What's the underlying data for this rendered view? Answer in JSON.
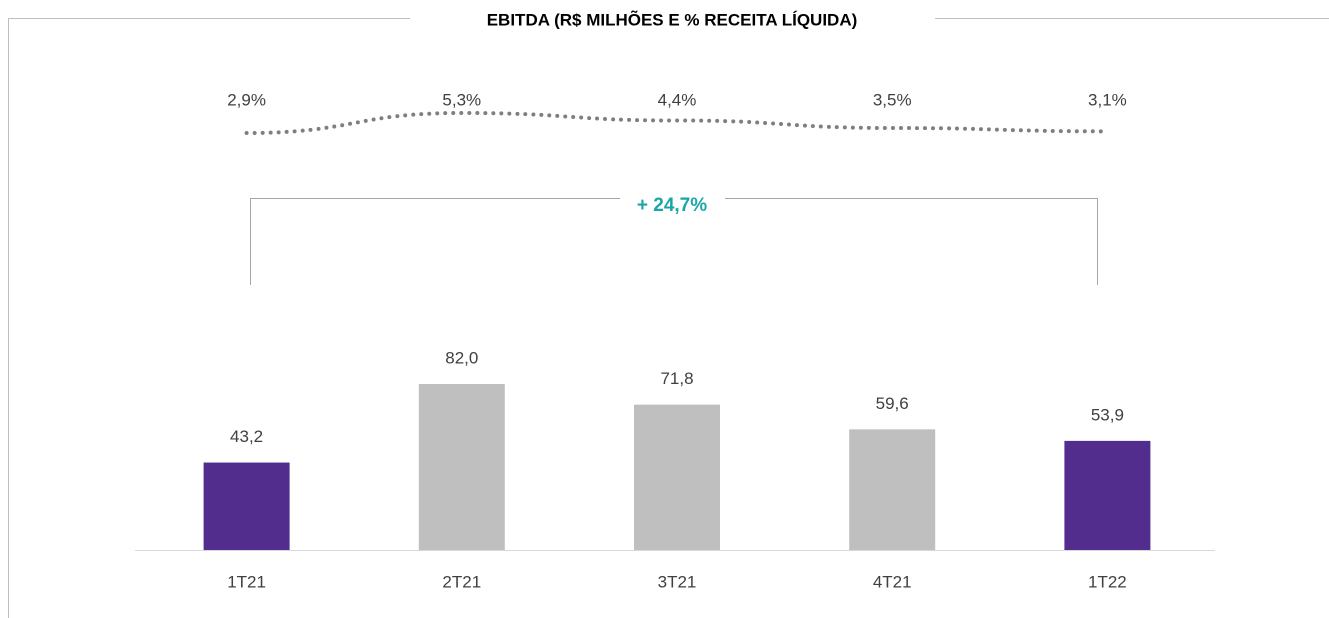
{
  "chart_data": {
    "type": "bar",
    "title": "EBITDA (R$ MILHÕES E % RECEITA LÍQUIDA)",
    "categories": [
      "1T21",
      "2T21",
      "3T21",
      "4T21",
      "1T22"
    ],
    "values": [
      43.2,
      82.0,
      71.8,
      59.6,
      53.9
    ],
    "value_labels": [
      "43,2",
      "82,0",
      "71,8",
      "59,6",
      "53,9"
    ],
    "colors": [
      "#522d8e",
      "#bfbfbf",
      "#bfbfbf",
      "#bfbfbf",
      "#522d8e"
    ],
    "margin": {
      "type": "line",
      "values": [
        2.9,
        5.3,
        4.4,
        3.5,
        3.1
      ],
      "value_labels": [
        "2,9%",
        "5,3%",
        "4,4%",
        "3,5%",
        "3,1%"
      ],
      "color": "#7f7f7f"
    },
    "annotation": {
      "text": "+ 24,7%",
      "color": "#1aa6a6"
    }
  }
}
